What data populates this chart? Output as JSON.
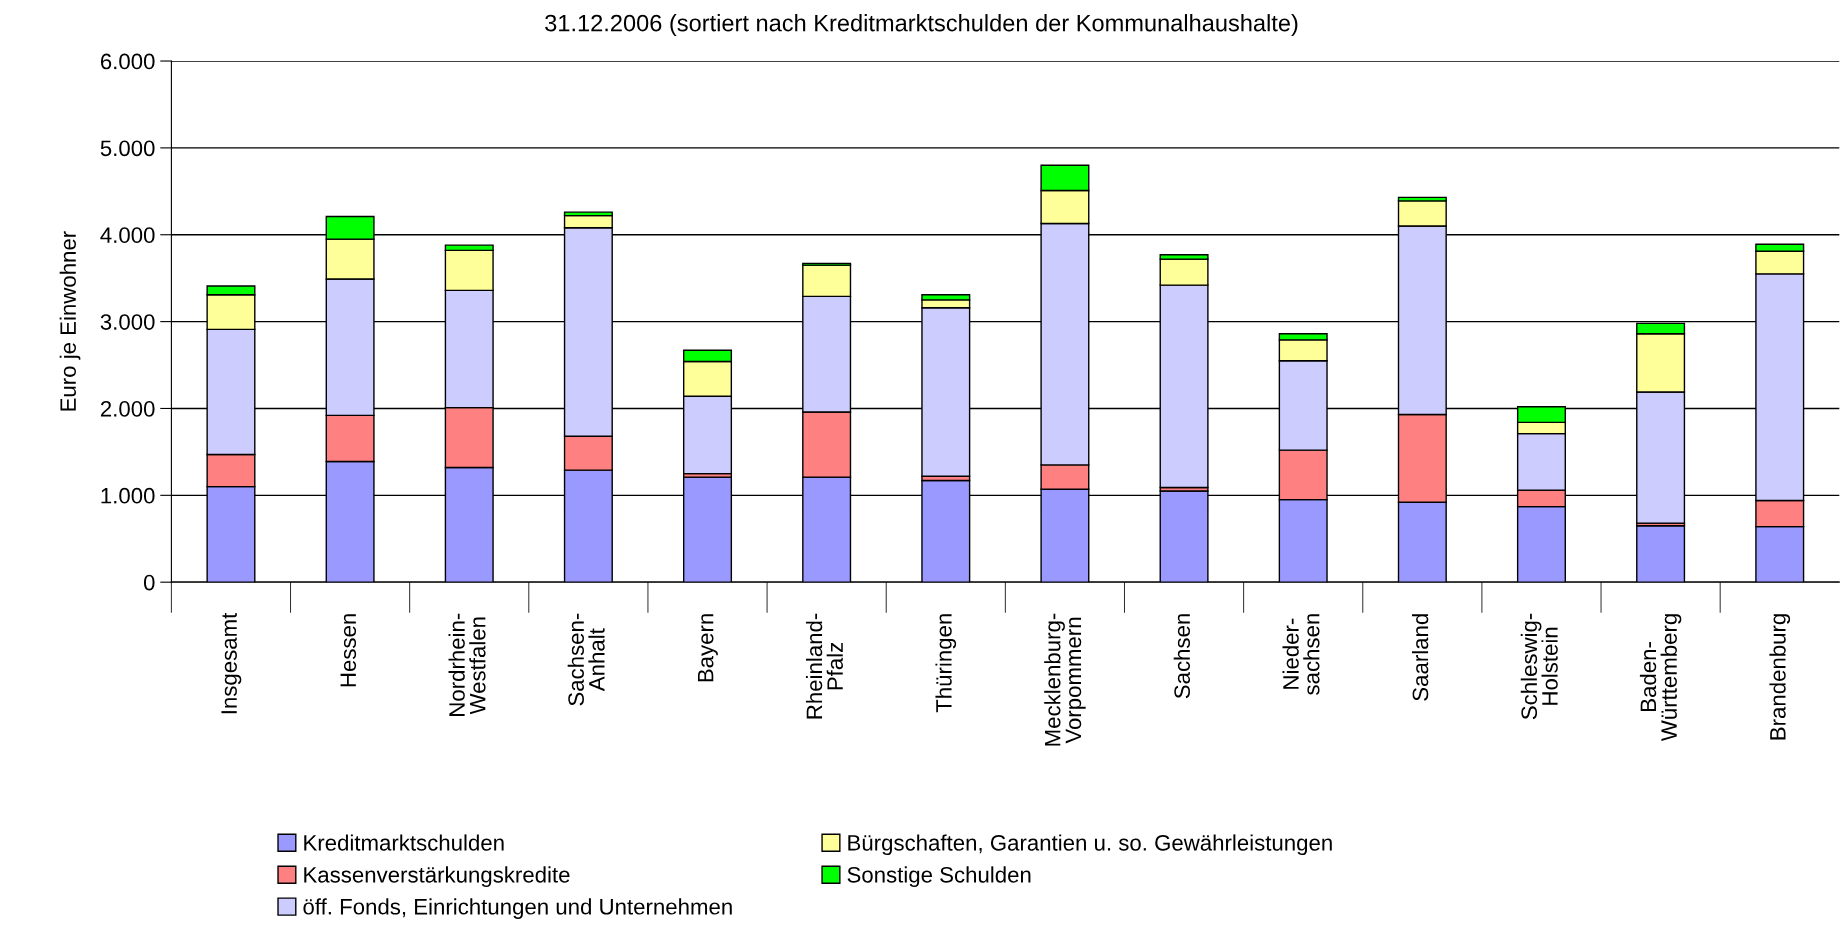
{
  "chart_data": {
    "type": "bar",
    "stacked": true,
    "title": "31.12.2006 (sortiert nach Kreditmarktschulden der Kommunalhaushalte)",
    "ylabel": "Euro je Einwohner",
    "categories": [
      "Insgesamt",
      "Hessen",
      "Nordrhein-\nWestfalen",
      "Sachsen-\nAnhalt",
      "Bayern",
      "Rheinland-\nPfalz",
      "Thüringen",
      "Mecklenburg-\nVorpommern",
      "Sachsen",
      "Nieder-\nsachsen",
      "Saarland",
      "Schleswig-\nHolstein",
      "Baden-\nWürttemberg",
      "Brandenburg"
    ],
    "series": [
      {
        "name": "Kreditmarktschulden",
        "color": "#9999ff",
        "values": [
          1100,
          1390,
          1320,
          1290,
          1210,
          1210,
          1170,
          1070,
          1050,
          950,
          920,
          870,
          650,
          640
        ]
      },
      {
        "name": "Kassenverstärkungskredite",
        "color": "#ff8080",
        "values": [
          370,
          530,
          690,
          390,
          40,
          750,
          50,
          280,
          40,
          570,
          1010,
          190,
          30,
          300
        ]
      },
      {
        "name": "öff. Fonds, Einrichtungen und Unternehmen",
        "color": "#ccccff",
        "values": [
          1440,
          1570,
          1350,
          2400,
          890,
          1330,
          1940,
          2780,
          2330,
          1030,
          2170,
          650,
          1510,
          2610
        ]
      },
      {
        "name": "Bürgschaften, Garantien u. so. Gewährleistungen",
        "color": "#ffff99",
        "values": [
          400,
          460,
          460,
          140,
          400,
          360,
          90,
          380,
          300,
          240,
          290,
          130,
          670,
          260
        ]
      },
      {
        "name": "Sonstige Schulden",
        "color": "#00ff00",
        "values": [
          100,
          260,
          60,
          40,
          130,
          20,
          60,
          290,
          50,
          70,
          40,
          180,
          120,
          80
        ]
      }
    ],
    "ylim": [
      0,
      6000
    ],
    "yticks": [
      {
        "value": 0,
        "label": "0"
      },
      {
        "value": 1000,
        "label": "1.000"
      },
      {
        "value": 2000,
        "label": "2.000"
      },
      {
        "value": 3000,
        "label": "3.000"
      },
      {
        "value": 4000,
        "label": "4.000"
      },
      {
        "value": 5000,
        "label": "5.000"
      },
      {
        "value": 6000,
        "label": "6.000"
      }
    ],
    "grid": "y",
    "legend": "bottom"
  }
}
